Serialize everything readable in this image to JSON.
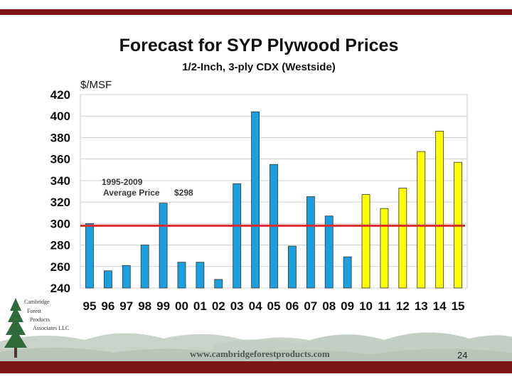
{
  "slide": {
    "title": "Forecast for SYP Plywood Prices",
    "subtitle": "1/2-Inch, 3-ply CDX (Westside)",
    "unit_label": "$/MSF",
    "website": "www.cambridgeforestproducts.com",
    "page_number": "24",
    "logo": {
      "line1": "Cambridge",
      "line2": "Forest",
      "line3": "Products",
      "line4": "Associates LLC",
      "icon": "pine-tree-icon"
    },
    "colors": {
      "accent_bar": "#7d1416",
      "historical_bar": "#1a9fe0",
      "forecast_bar": "#ffff00",
      "average_line": "#d92b2b"
    }
  },
  "chart_data": {
    "type": "bar",
    "title": "Forecast for SYP Plywood Prices",
    "subtitle": "1/2-Inch, 3-ply CDX (Westside)",
    "ylabel": "$/MSF",
    "xlabel": "",
    "ylim": [
      240,
      420
    ],
    "yticks": [
      240,
      260,
      280,
      300,
      320,
      340,
      360,
      380,
      400,
      420
    ],
    "grid": true,
    "categories": [
      "95",
      "96",
      "97",
      "98",
      "99",
      "00",
      "01",
      "02",
      "03",
      "04",
      "05",
      "06",
      "07",
      "08",
      "09",
      "10",
      "11",
      "12",
      "13",
      "14",
      "15"
    ],
    "values": [
      300,
      256,
      261,
      280,
      319,
      264,
      264,
      248,
      337,
      404,
      355,
      279,
      325,
      307,
      269,
      327,
      314,
      333,
      367,
      386,
      357
    ],
    "series_type": [
      "historical",
      "historical",
      "historical",
      "historical",
      "historical",
      "historical",
      "historical",
      "historical",
      "historical",
      "historical",
      "historical",
      "historical",
      "historical",
      "historical",
      "historical",
      "forecast",
      "forecast",
      "forecast",
      "forecast",
      "forecast",
      "forecast"
    ],
    "reference_line": {
      "value": 298,
      "label_line1": "1995-2009",
      "label_line2": "Average Price",
      "label_value": "$298"
    }
  }
}
